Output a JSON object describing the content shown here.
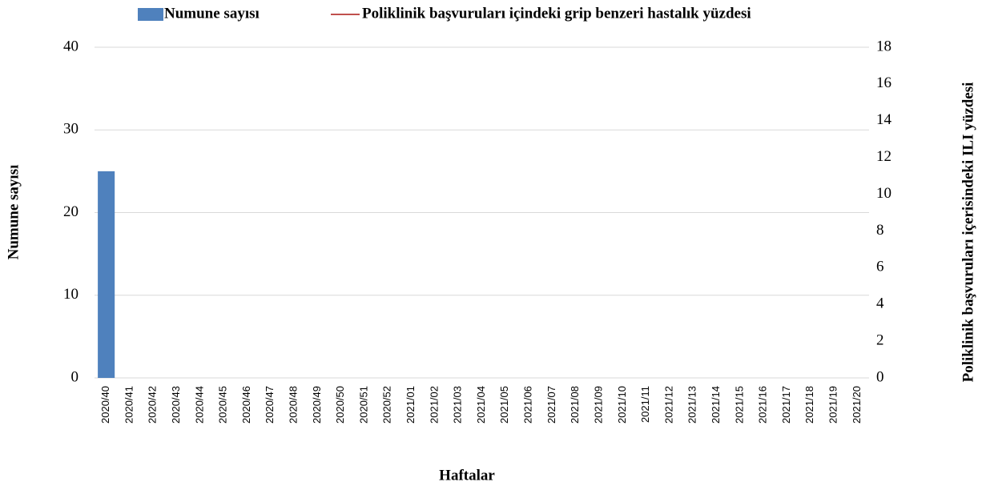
{
  "chart_data": {
    "type": "bar",
    "x_label": "Haftalar",
    "y_label": "Numune sayısı",
    "y2_label": "Poliklinik başvuruları içerisindeki ILI yüzdesi",
    "categories": [
      "2020/40",
      "2020/41",
      "2020/42",
      "2020/43",
      "2020/44",
      "2020/45",
      "2020/46",
      "2020/47",
      "2020/48",
      "2020/49",
      "2020/50",
      "2020/51",
      "2020/52",
      "2021/01",
      "2021/02",
      "2021/03",
      "2021/04",
      "2021/05",
      "2021/06",
      "2021/07",
      "2021/08",
      "2021/09",
      "2021/10",
      "2021/11",
      "2021/12",
      "2021/13",
      "2021/14",
      "2021/15",
      "2021/16",
      "2021/17",
      "2021/18",
      "2021/19",
      "2021/20"
    ],
    "series": [
      {
        "name": "Numune sayısı",
        "type": "bar",
        "color": "#4f81bd",
        "values": [
          25,
          0,
          0,
          0,
          0,
          0,
          0,
          0,
          0,
          0,
          0,
          0,
          0,
          0,
          0,
          0,
          0,
          0,
          0,
          0,
          0,
          0,
          0,
          0,
          0,
          0,
          0,
          0,
          0,
          0,
          0,
          0,
          0
        ]
      },
      {
        "name": "Poliklinik başvuruları içindeki grip benzeri hastalık yüzdesi",
        "type": "line",
        "axis": "y2",
        "color": "#c0504d",
        "values": [
          null,
          null,
          null,
          null,
          null,
          null,
          null,
          null,
          null,
          null,
          null,
          null,
          null,
          null,
          null,
          null,
          null,
          null,
          null,
          null,
          null,
          null,
          null,
          null,
          null,
          null,
          null,
          null,
          null,
          null,
          null,
          null,
          null
        ]
      }
    ],
    "ylim": [
      0,
      40
    ],
    "yticks": [
      0,
      10,
      20,
      30,
      40
    ],
    "y2lim": [
      0,
      18
    ],
    "y2ticks": [
      0,
      2,
      4,
      6,
      8,
      10,
      12,
      14,
      16,
      18
    ],
    "grid": true,
    "legend": "top"
  }
}
